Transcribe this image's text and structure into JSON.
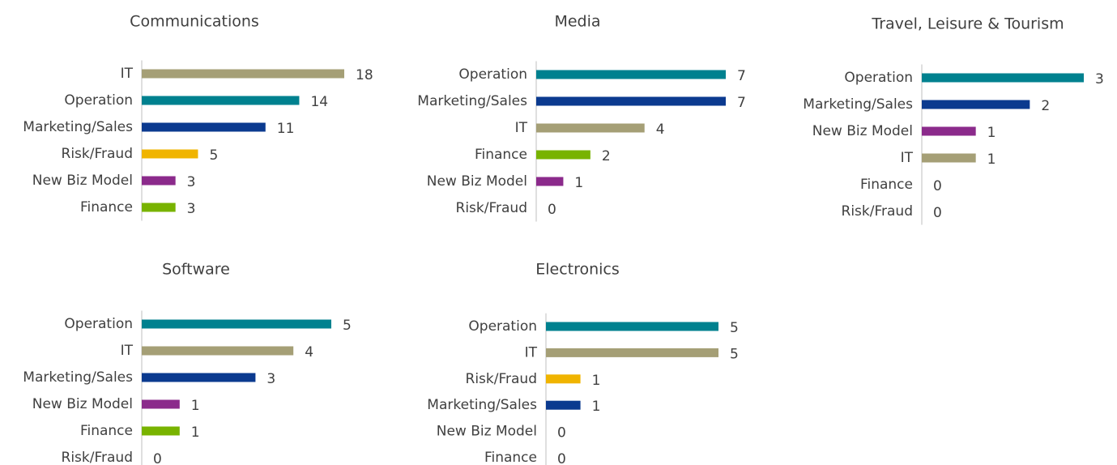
{
  "chart_data": [
    {
      "type": "bar",
      "orientation": "horizontal",
      "title": "Communications",
      "categories": [
        "IT",
        "Operation",
        "Marketing/Sales",
        "Risk/Fraud",
        "New Biz Model",
        "Finance"
      ],
      "values": [
        18,
        14,
        11,
        5,
        3,
        3
      ],
      "colors": [
        "#a59f76",
        "#00818f",
        "#0b3a8f",
        "#f0b400",
        "#8b2a8b",
        "#78b300"
      ],
      "xlim": [
        0,
        18
      ]
    },
    {
      "type": "bar",
      "orientation": "horizontal",
      "title": "Media",
      "categories": [
        "Operation",
        "Marketing/Sales",
        "IT",
        "Finance",
        "New Biz Model",
        "Risk/Fraud"
      ],
      "values": [
        7,
        7,
        4,
        2,
        1,
        0
      ],
      "colors": [
        "#00818f",
        "#0b3a8f",
        "#a59f76",
        "#78b300",
        "#8b2a8b",
        "#f0b400"
      ],
      "xlim": [
        0,
        7
      ]
    },
    {
      "type": "bar",
      "orientation": "horizontal",
      "title": "Travel, Leisure & Tourism",
      "categories": [
        "Operation",
        "Marketing/Sales",
        "New Biz Model",
        "IT",
        "Finance",
        "Risk/Fraud"
      ],
      "values": [
        3,
        2,
        1,
        1,
        0,
        0
      ],
      "colors": [
        "#00818f",
        "#0b3a8f",
        "#8b2a8b",
        "#a59f76",
        "#78b300",
        "#f0b400"
      ],
      "xlim": [
        0,
        3
      ]
    },
    {
      "type": "bar",
      "orientation": "horizontal",
      "title": "Software",
      "categories": [
        "Operation",
        "IT",
        "Marketing/Sales",
        "New Biz Model",
        "Finance",
        "Risk/Fraud"
      ],
      "values": [
        5,
        4,
        3,
        1,
        1,
        0
      ],
      "colors": [
        "#00818f",
        "#a59f76",
        "#0b3a8f",
        "#8b2a8b",
        "#78b300",
        "#f0b400"
      ],
      "xlim": [
        0,
        5
      ]
    },
    {
      "type": "bar",
      "orientation": "horizontal",
      "title": "Electronics",
      "categories": [
        "Operation",
        "IT",
        "Risk/Fraud",
        "Marketing/Sales",
        "New Biz Model",
        "Finance"
      ],
      "values": [
        5,
        5,
        1,
        1,
        0,
        0
      ],
      "colors": [
        "#00818f",
        "#a59f76",
        "#f0b400",
        "#0b3a8f",
        "#8b2a8b",
        "#78b300"
      ],
      "xlim": [
        0,
        5
      ]
    }
  ]
}
